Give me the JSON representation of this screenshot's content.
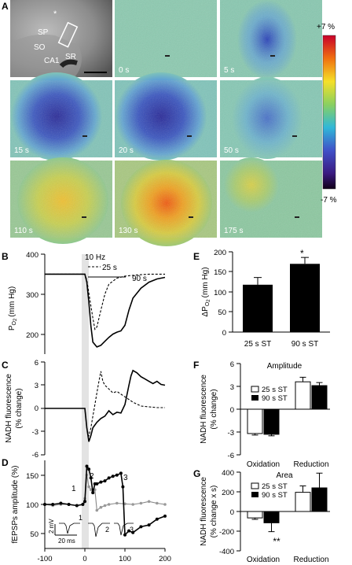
{
  "panel_labels": {
    "a": "A",
    "b": "B",
    "c": "C",
    "d": "D",
    "e": "E",
    "f": "F",
    "g": "G"
  },
  "panelA": {
    "regions": {
      "sp": "SP",
      "so": "SO",
      "sr": "SR",
      "ca1": "CA1",
      "star": "*"
    },
    "time_labels": [
      "0 s",
      "5 s",
      "15 s",
      "20 s",
      "50 s",
      "110 s",
      "130 s",
      "175 s"
    ],
    "colorbar": {
      "top": "+7 %",
      "bottom": "-7 %"
    }
  },
  "stim": {
    "freq": "10 Hz",
    "short": "25 s",
    "long": "90 s"
  },
  "chart_data": [
    {
      "id": "B",
      "type": "line",
      "ylabel": "Po2 (mm Hg)",
      "ylabel_main": "P",
      "ylabel_sub": "O",
      "ylabel_subsub": "2",
      "ylabel_unit": "(mm Hg)",
      "ylim": [
        150,
        400
      ],
      "yticks": [
        "200",
        "300",
        "400"
      ],
      "xlim": [
        -100,
        200
      ],
      "series": [
        {
          "name": "25 s",
          "style": "dashed",
          "x": [
            -100,
            0,
            5,
            12,
            20,
            25,
            30,
            40,
            50,
            60,
            80,
            100,
            130,
            160,
            200
          ],
          "y": [
            350,
            350,
            335,
            290,
            240,
            212,
            218,
            260,
            300,
            325,
            340,
            345,
            348,
            350,
            350
          ]
        },
        {
          "name": "90 s",
          "style": "solid",
          "x": [
            -100,
            0,
            5,
            10,
            15,
            20,
            30,
            40,
            50,
            60,
            70,
            80,
            90,
            100,
            110,
            120,
            140,
            160,
            180,
            200
          ],
          "y": [
            350,
            350,
            330,
            280,
            220,
            180,
            168,
            172,
            182,
            192,
            200,
            205,
            208,
            222,
            260,
            290,
            315,
            330,
            338,
            342
          ]
        }
      ]
    },
    {
      "id": "C",
      "type": "line",
      "ylabel_lines": [
        "NADH fluorescence",
        "(% change)"
      ],
      "ylim": [
        -6,
        6
      ],
      "yticks": [
        "6",
        "3",
        "0",
        "-3",
        "-6"
      ],
      "xlim": [
        -100,
        200
      ],
      "series": [
        {
          "name": "25 s",
          "style": "dashed",
          "x": [
            -100,
            -50,
            0,
            5,
            10,
            15,
            20,
            25,
            30,
            35,
            40,
            45,
            50,
            60,
            70,
            80,
            100,
            120,
            140,
            160,
            180,
            200
          ],
          "y": [
            0,
            0,
            0,
            -2.5,
            -3.6,
            -2.5,
            -1,
            0.5,
            2,
            3.5,
            4.8,
            3.5,
            3,
            2.5,
            2,
            2.2,
            1.5,
            0.8,
            0.3,
            0.2,
            0.1,
            0.1
          ]
        },
        {
          "name": "90 s",
          "style": "solid",
          "x": [
            -100,
            -50,
            0,
            5,
            10,
            15,
            20,
            30,
            40,
            50,
            60,
            70,
            80,
            90,
            100,
            110,
            115,
            120,
            130,
            140,
            150,
            160,
            170,
            180,
            190,
            200
          ],
          "y": [
            0,
            0,
            0,
            -2.5,
            -4.3,
            -3.5,
            -2.5,
            -1.8,
            -1.3,
            -1,
            -0.3,
            -0.8,
            -0.5,
            -0.6,
            0.5,
            3,
            4.2,
            4.9,
            4.6,
            4.1,
            3.8,
            3.5,
            3.2,
            3.5,
            3.1,
            3.0
          ]
        }
      ]
    },
    {
      "id": "D",
      "type": "line",
      "ylabel": "fEPSPs amplitude (%)",
      "ylim": [
        25,
        175
      ],
      "yticks": [
        "150",
        "100",
        "50"
      ],
      "xlim": [
        -100,
        200
      ],
      "xticks": [
        "-100",
        "0",
        "100",
        "200"
      ],
      "annotations": {
        "n1": "1",
        "n2": "2",
        "n3": "3",
        "s1": "1",
        "s2": "2",
        "s3": "3",
        "scale_y": "2 mV",
        "scale_x": "20 ms"
      },
      "series": [
        {
          "name": "25 s",
          "style": "grey",
          "x": [
            -100,
            -80,
            -60,
            -40,
            -20,
            -5,
            0,
            5,
            10,
            15,
            20,
            25,
            30,
            40,
            50,
            60,
            80,
            100,
            120,
            140,
            160,
            180,
            200
          ],
          "y": [
            100,
            98,
            100,
            100,
            98,
            100,
            110,
            150,
            130,
            125,
            120,
            125,
            90,
            95,
            98,
            100,
            102,
            101,
            100,
            102,
            105,
            102,
            100
          ]
        },
        {
          "name": "90 s",
          "style": "black",
          "x": [
            -100,
            -80,
            -60,
            -40,
            -20,
            -5,
            0,
            5,
            10,
            15,
            20,
            25,
            30,
            40,
            50,
            60,
            70,
            80,
            90,
            95,
            100,
            110,
            120,
            140,
            160,
            180,
            200
          ],
          "y": [
            100,
            100,
            102,
            100,
            98,
            100,
            105,
            165,
            160,
            145,
            120,
            135,
            135,
            138,
            140,
            145,
            148,
            150,
            153,
            130,
            48,
            55,
            52,
            62,
            65,
            75,
            80
          ]
        }
      ]
    },
    {
      "id": "E",
      "type": "bar",
      "ylabel": "ΔPo2 (mm Hg)",
      "ylabel_main": "ΔP",
      "ylabel_sub": "O",
      "ylabel_subsub": "2",
      "ylabel_unit": "(mm Hg)",
      "categories": [
        "25 s ST",
        "90 s ST"
      ],
      "values": [
        118,
        170
      ],
      "errors": [
        18,
        16
      ],
      "ylim": [
        0,
        200
      ],
      "yticks": [
        "200",
        "150",
        "100",
        "50",
        "0"
      ],
      "annotations": {
        "sig": "*"
      }
    },
    {
      "id": "F",
      "type": "bar",
      "title": "Amplitude",
      "ylabel_lines": [
        "NADH fluorescence",
        "(% change)"
      ],
      "categories": [
        "Oxidation",
        "Reduction"
      ],
      "series": [
        {
          "name": "25 s ST",
          "color": "#ffffff",
          "values": [
            -3.2,
            3.6
          ],
          "errors": [
            0.2,
            0.6
          ]
        },
        {
          "name": "90 s ST",
          "color": "#000000",
          "values": [
            -3.3,
            3.1
          ],
          "errors": [
            0.2,
            0.4
          ]
        }
      ],
      "ylim": [
        -6,
        6
      ],
      "yticks": [
        "6",
        "3",
        "0",
        "-3",
        "-6"
      ]
    },
    {
      "id": "G",
      "type": "bar",
      "title": "Area",
      "ylabel_lines": [
        "NADH fluorescence",
        "(% change x s)"
      ],
      "categories": [
        "Oxidation",
        "Reduction"
      ],
      "series": [
        {
          "name": "25 s ST",
          "color": "#ffffff",
          "values": [
            -65,
            195
          ],
          "errors": [
            15,
            65
          ]
        },
        {
          "name": "90 s ST",
          "color": "#000000",
          "values": [
            -115,
            240
          ],
          "errors": [
            90,
            150
          ]
        }
      ],
      "ylim": [
        -400,
        400
      ],
      "yticks": [
        "400",
        "200",
        "0",
        "-200",
        "-400"
      ],
      "annotations": {
        "sig": "**"
      }
    }
  ]
}
